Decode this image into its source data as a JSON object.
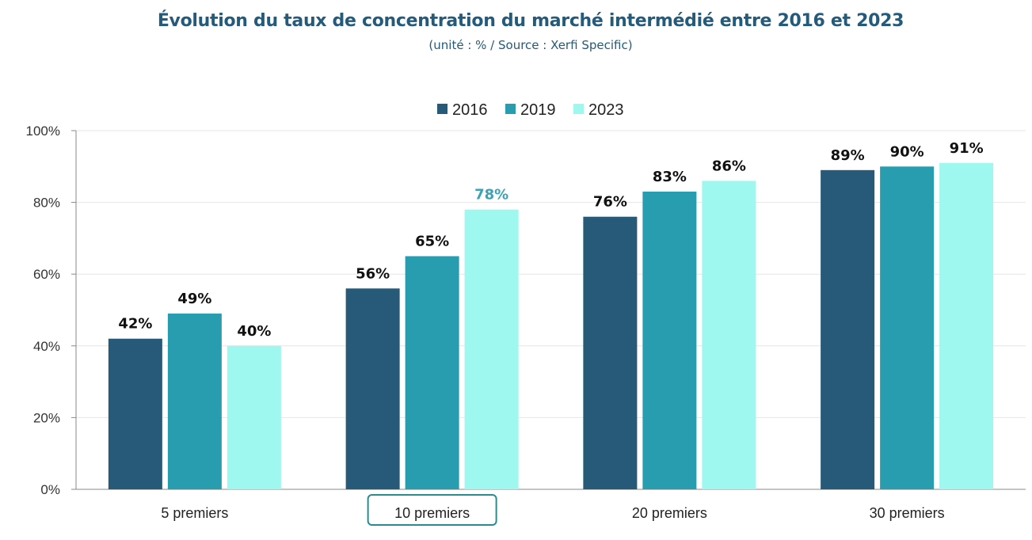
{
  "header": {
    "title": "Évolution du taux de concentration du marché intermédié entre 2016 et 2023",
    "subtitle": "(unité : % / Source : Xerfi Specific)"
  },
  "colors": {
    "title": "#245a7a",
    "series_2016": "#275a78",
    "series_2019": "#279daf",
    "series_2023": "#9ff8ef",
    "highlight_label": "#3aa3b5",
    "highlight_box": "#2a8c8c",
    "grid": "#e6e6e6",
    "axis": "#888888"
  },
  "chart_data": {
    "type": "bar",
    "categories": [
      "5 premiers",
      "10 premiers",
      "20 premiers",
      "30 premiers"
    ],
    "series": [
      {
        "name": "2016",
        "values": [
          42,
          56,
          76,
          89
        ]
      },
      {
        "name": "2019",
        "values": [
          49,
          65,
          83,
          90
        ]
      },
      {
        "name": "2023",
        "values": [
          40,
          78,
          86,
          91
        ]
      }
    ],
    "value_labels": [
      [
        "42%",
        "56%",
        "76%",
        "89%"
      ],
      [
        "49%",
        "65%",
        "83%",
        "90%"
      ],
      [
        "40%",
        "78%",
        "86%",
        "91%"
      ]
    ],
    "y_ticks": [
      "0%",
      "20%",
      "40%",
      "60%",
      "80%",
      "100%"
    ],
    "ylim": [
      0,
      100
    ],
    "grid": true,
    "legend_position": "top-center",
    "highlighted_category": "10 premiers",
    "highlighted_label": {
      "series": "2023",
      "category": "10 premiers"
    }
  }
}
